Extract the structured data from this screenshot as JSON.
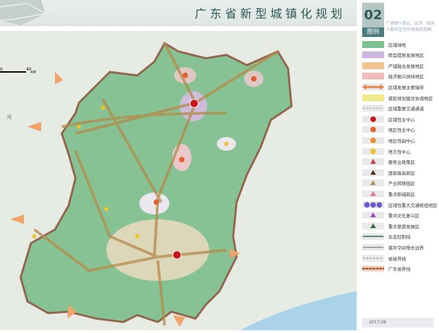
{
  "header": {
    "title": "广东省新型城镇化规划"
  },
  "sidebar": {
    "number": "02",
    "legend_title": "图例",
    "subtitle": "广佛肇+清远、云浮、韶关大都市区空间发展规划图",
    "date": "2017.08",
    "legend": [
      {
        "label": "区域绿地",
        "kind": "fill",
        "color": "#7cc08f"
      },
      {
        "label": "转型提质发展地区",
        "kind": "fill",
        "color": "#cdb6e0"
      },
      {
        "label": "产城融合发展地区",
        "kind": "fill",
        "color": "#f3c48e"
      },
      {
        "label": "经济振兴扶持地区",
        "kind": "fill",
        "color": "#f0bcbc"
      },
      {
        "label": "区域发展主要轴带",
        "kind": "arrow",
        "color": "#e8864a"
      },
      {
        "label": "城际规划建设协调地区",
        "kind": "fill",
        "color": "#eee98a"
      },
      {
        "label": "区域重要交通通道",
        "kind": "dash",
        "color": "#999999"
      },
      {
        "label": "区域性主中心",
        "kind": "circle",
        "color": "#c8151b"
      },
      {
        "label": "地区性主中心",
        "kind": "circle",
        "color": "#e0622c"
      },
      {
        "label": "地区性副中心",
        "kind": "circle",
        "color": "#f08a2a"
      },
      {
        "label": "地方性中心",
        "kind": "circle",
        "color": "#f3c224"
      },
      {
        "label": "服务业政策区",
        "kind": "triangle",
        "color": "#d8303a"
      },
      {
        "label": "国家级高新区",
        "kind": "triangle",
        "color": "#5a2a1a"
      },
      {
        "label": "产业转移园区",
        "kind": "triangle",
        "color": "#b88a5a"
      },
      {
        "label": "重点新城新区",
        "kind": "triangle",
        "color": "#e070a0"
      },
      {
        "label": "区域性重大交通枢纽地区",
        "kind": "hub",
        "color": "#6a5ad0"
      },
      {
        "label": "重点文化复兴区",
        "kind": "triangle",
        "color": "#9a40d0"
      },
      {
        "label": "重点旅游发展区",
        "kind": "triangle",
        "color": "#2f6a3a"
      },
      {
        "label": "生态控制线",
        "kind": "line",
        "color": "#2f6a3a"
      },
      {
        "label": "城市空间增长边界",
        "kind": "line",
        "color": "#888888"
      },
      {
        "label": "省级界线",
        "kind": "dash",
        "color": "#777777"
      },
      {
        "label": "广东省界线",
        "kind": "border",
        "color": "#a0522d"
      }
    ]
  },
  "map": {
    "scale_start": "0",
    "scale_end": "40",
    "scale_unit": "KM",
    "river_label": "河"
  }
}
